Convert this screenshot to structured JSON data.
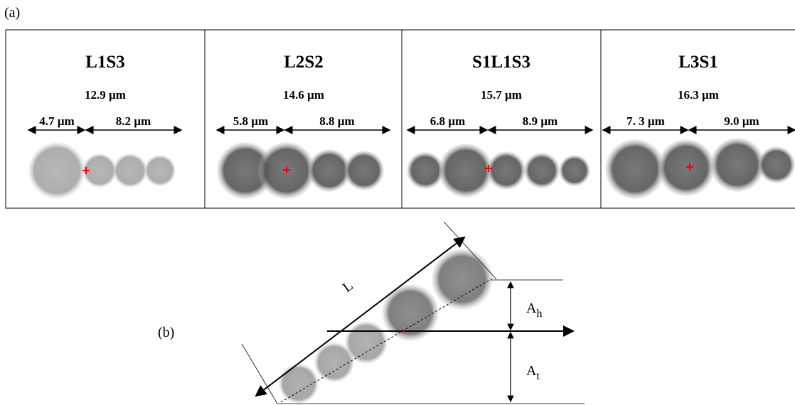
{
  "figure": {
    "panel_a_label": "(a)",
    "panel_b_label": "(b)",
    "panels": [
      {
        "title": "L1S3",
        "total": "12.9 µm",
        "left": "4.7 µm",
        "right": "8.2 µm"
      },
      {
        "title": "L2S2",
        "total": "14.6 µm",
        "left": "5.8 µm",
        "right": "8.8 µm"
      },
      {
        "title": "S1L1S3",
        "total": "15.7 µm",
        "left": "6.8 µm",
        "right": "8.9 µm"
      },
      {
        "title": "L3S1",
        "total": "16.3 µm",
        "left": "7. 3 µm",
        "right": "9.0 µm"
      }
    ],
    "diagram": {
      "length_label": "L",
      "head": {
        "symbol": "A",
        "subscript": "h"
      },
      "tail": {
        "symbol": "A",
        "subscript": "t"
      }
    }
  }
}
